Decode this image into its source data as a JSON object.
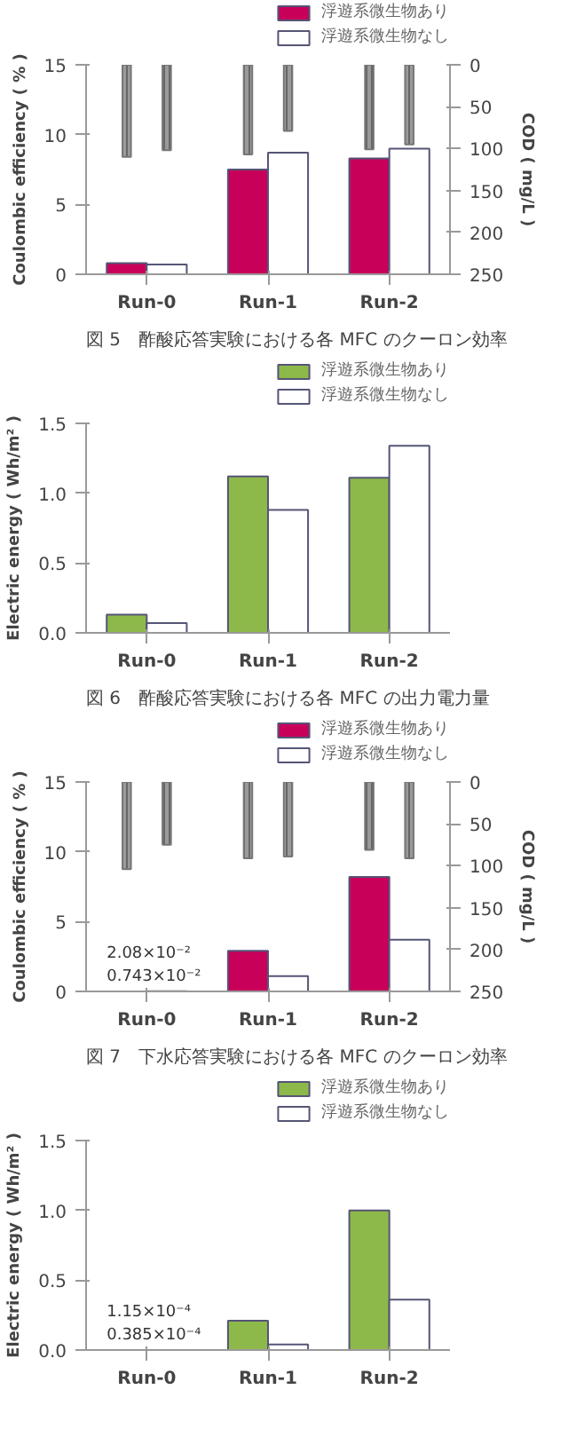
{
  "chart_data": [
    {
      "type": "bar",
      "categories": [
        "Run-0",
        "Run-1",
        "Run-2"
      ],
      "ylabel": "Coulombic efficiency ( % )",
      "y2label": "COD ( mg/L )",
      "ylim": [
        0,
        15
      ],
      "yticks": [
        0,
        5,
        10,
        15
      ],
      "y2lim": [
        250,
        0
      ],
      "y2ticks": [
        0,
        50,
        100,
        150,
        200,
        250
      ],
      "legend": "top right",
      "annotations": [
        "図 5　酢酸応答実験における各 MFC のクーロン効率"
      ],
      "series": [
        {
          "name": "浮遊系微生物あり",
          "color": "#c8005a",
          "values": [
            0.8,
            7.5,
            8.3
          ]
        },
        {
          "name": "浮遊系微生物なし",
          "color": "#ffffff",
          "values": [
            0.7,
            8.7,
            9.0
          ]
        },
        {
          "color": "#9a9a9a",
          "axis": "y2",
          "values": [
            110,
            107,
            101
          ]
        },
        {
          "color": "#9a9a9a",
          "axis": "y2",
          "values": [
            102,
            79,
            95
          ]
        }
      ]
    },
    {
      "type": "bar",
      "categories": [
        "Run-0",
        "Run-1",
        "Run-2"
      ],
      "ylabel": "Electric energy ( Wh/m² )",
      "ylim": [
        0,
        1.5
      ],
      "yticks": [
        {
          "value": 0,
          "label": "0.0"
        },
        {
          "value": 0.5,
          "label": "0.5"
        },
        {
          "value": 1,
          "label": "1.0"
        },
        {
          "value": 1.5,
          "label": "1.5"
        }
      ],
      "legend": "top right",
      "annotations": [
        "図 6　酢酸応答実験における各 MFC の出力電力量"
      ],
      "series": [
        {
          "name": "浮遊系微生物あり",
          "color": "#8db94a",
          "values": [
            0.13,
            1.12,
            1.11
          ]
        },
        {
          "name": "浮遊系微生物なし",
          "color": "#ffffff",
          "values": [
            0.07,
            0.88,
            1.34
          ]
        }
      ]
    },
    {
      "type": "bar",
      "categories": [
        "Run-0",
        "Run-1",
        "Run-2"
      ],
      "ylabel": "Coulombic efficiency ( % )",
      "y2label": "COD ( mg/L )",
      "ylim": [
        0,
        15
      ],
      "yticks": [
        0,
        5,
        10,
        15
      ],
      "y2lim": [
        250,
        0
      ],
      "y2ticks": [
        0,
        50,
        100,
        150,
        200,
        250
      ],
      "legend": "top right",
      "annotations": [
        "図 7　下水応答実験における各 MFC のクーロン効率"
      ],
      "series": [
        {
          "name": "浮遊系微生物あり",
          "color": "#c8005a",
          "values": [
            0.00743,
            2.9,
            8.2
          ],
          "value_labels": [
            "0.743×10⁻²",
            null,
            null
          ]
        },
        {
          "name": "浮遊系微生物なし",
          "color": "#ffffff",
          "values": [
            0.0208,
            1.1,
            3.7
          ],
          "value_labels": [
            "2.08×10⁻²",
            null,
            null
          ]
        },
        {
          "color": "#9a9a9a",
          "axis": "y2",
          "values": [
            104,
            91,
            81
          ]
        },
        {
          "color": "#9a9a9a",
          "axis": "y2",
          "values": [
            75,
            89,
            91
          ]
        }
      ]
    },
    {
      "type": "bar",
      "categories": [
        "Run-0",
        "Run-1",
        "Run-2"
      ],
      "ylabel": "Electric energy ( Wh/m² )",
      "ylim": [
        0,
        1.5
      ],
      "yticks": [
        {
          "value": 0,
          "label": "0.0"
        },
        {
          "value": 0.5,
          "label": "0.5"
        },
        {
          "value": 1,
          "label": "1.0"
        },
        {
          "value": 1.5,
          "label": "1.5"
        }
      ],
      "legend": "top right",
      "series": [
        {
          "name": "浮遊系微生物あり",
          "color": "#8db94a",
          "values": [
            3.85e-05,
            0.21,
            1.0
          ],
          "value_labels": [
            "0.385×10⁻⁴",
            null,
            null
          ]
        },
        {
          "name": "浮遊系微生物なし",
          "color": "#ffffff",
          "values": [
            0.000115,
            0.04,
            0.36
          ],
          "value_labels": [
            "1.15×10⁻⁴",
            null,
            null
          ]
        }
      ]
    }
  ]
}
